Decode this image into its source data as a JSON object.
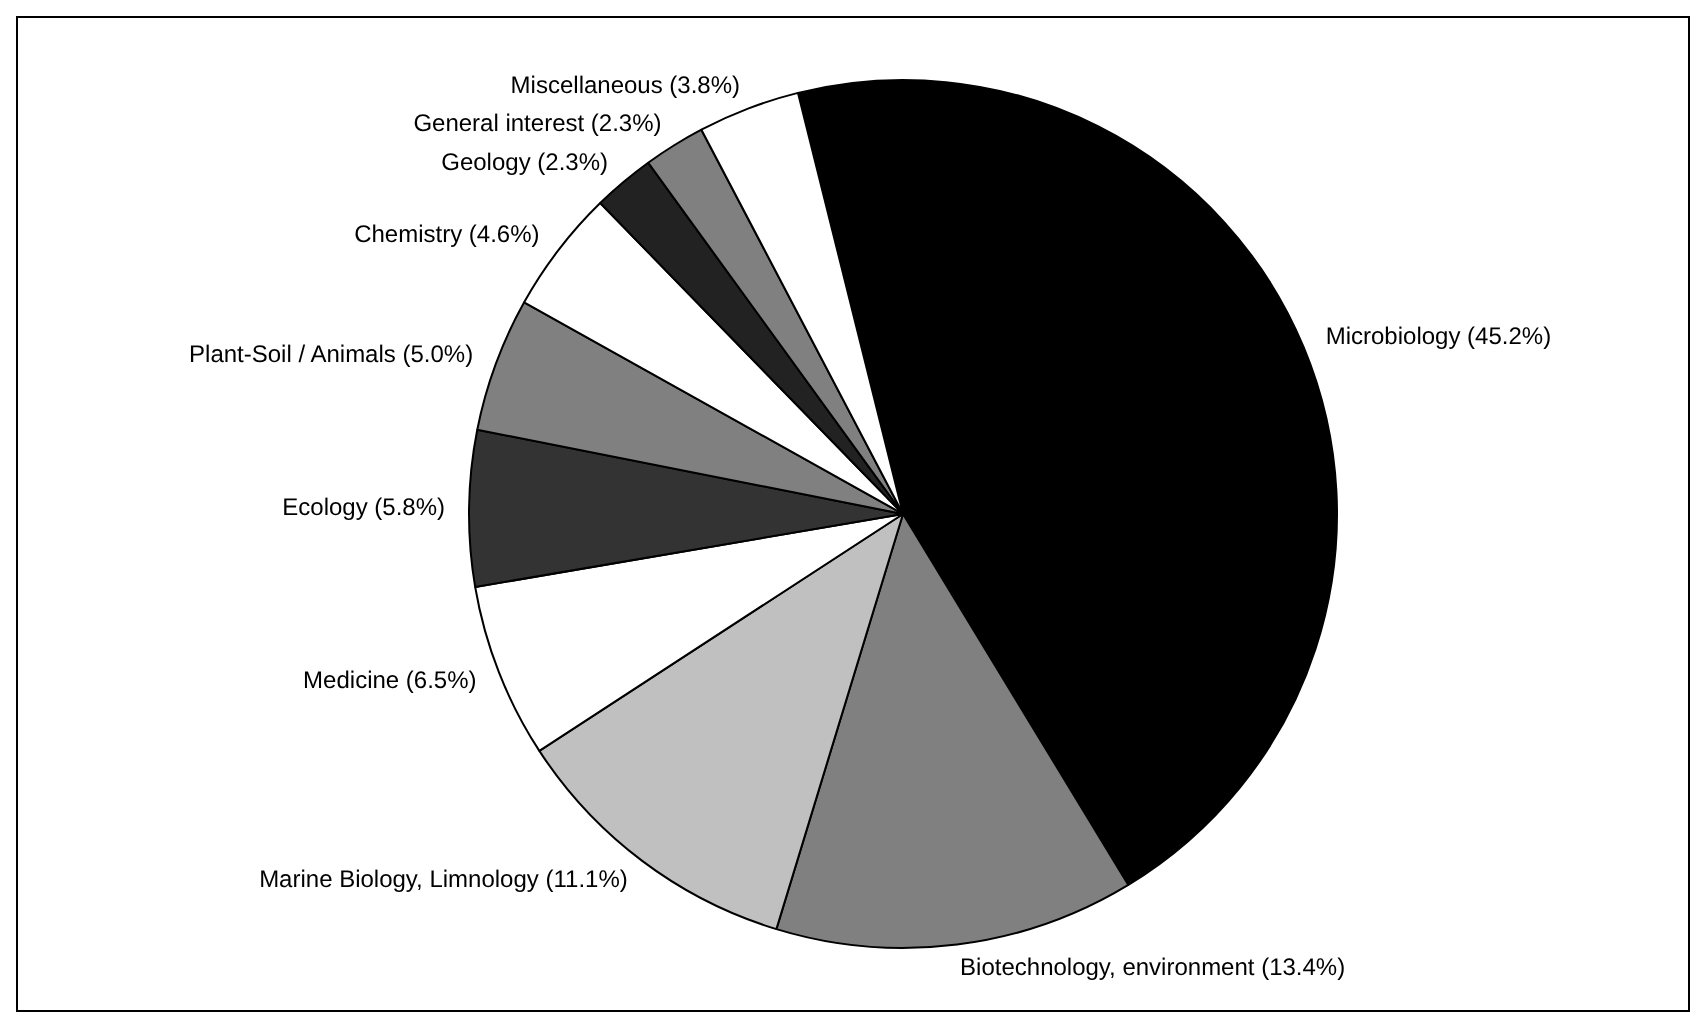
{
  "chart_data": {
    "type": "pie",
    "categories": [
      "Microbiology (45.2%)",
      "Biotechnology, environment (13.4%)",
      "Marine Biology, Limnology (11.1%)",
      "Medicine (6.5%)",
      "Ecology (5.8%)",
      "Plant-Soil / Animals (5.0%)",
      "Chemistry (4.6%)",
      "Geology (2.3%)",
      "General interest (2.3%)",
      "Miscellaneous (3.8%)"
    ],
    "values": [
      45.2,
      13.4,
      11.1,
      6.5,
      5.8,
      5.0,
      4.6,
      2.3,
      2.3,
      3.8
    ],
    "colors": [
      "#000000",
      "#808080",
      "#c0c0c0",
      "#ffffff",
      "#333333",
      "#808080",
      "#ffffff",
      "#222222",
      "#808080",
      "#ffffff"
    ],
    "legend": false
  }
}
